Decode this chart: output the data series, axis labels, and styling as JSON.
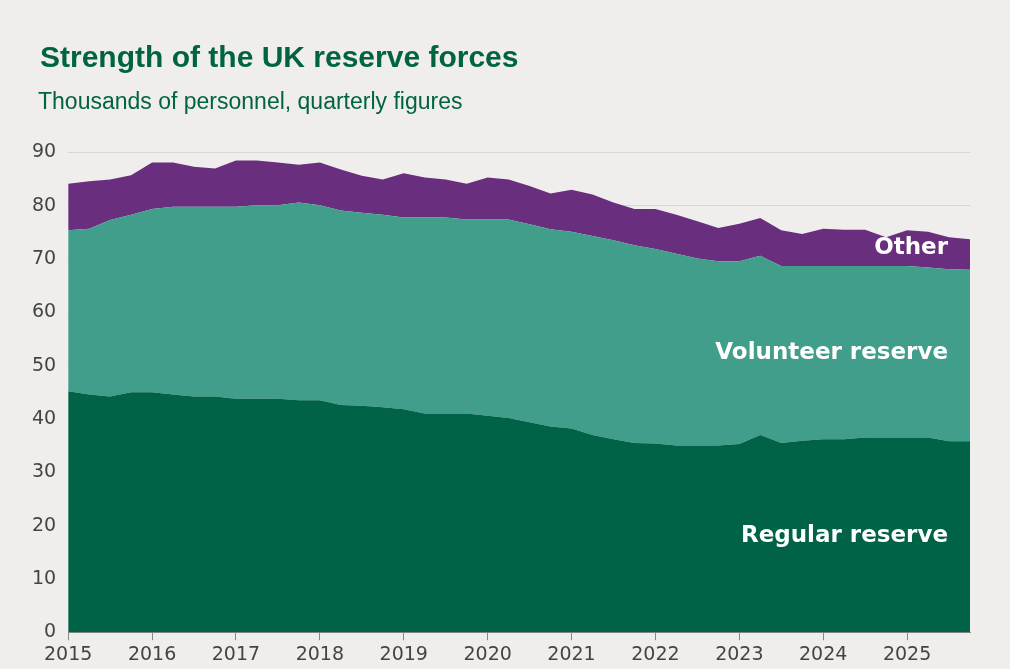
{
  "chart_data": {
    "type": "area",
    "title": "Strength of the UK reserve forces",
    "subtitle": "Thousands of personnel, quarterly figures",
    "x": [
      2015,
      2015.25,
      2015.5,
      2015.75,
      2016,
      2016.25,
      2016.5,
      2016.75,
      2017,
      2017.25,
      2017.5,
      2017.75,
      2018,
      2018.25,
      2018.5,
      2018.75,
      2019,
      2019.25,
      2019.5,
      2019.75,
      2020,
      2020.25,
      2020.5,
      2020.75,
      2021,
      2021.25,
      2021.5,
      2021.75,
      2022,
      2022.25,
      2022.5,
      2022.75,
      2023,
      2023.25,
      2023.5,
      2023.75,
      2024,
      2024.25,
      2024.5,
      2024.75,
      2025,
      2025.25,
      2025.5,
      2025.75
    ],
    "series": [
      {
        "name": "Regular reserve",
        "color": "#006246",
        "values": [
          45.2,
          44.6,
          44.2,
          45.0,
          45.0,
          44.6,
          44.2,
          44.2,
          43.8,
          43.8,
          43.8,
          43.5,
          43.5,
          42.6,
          42.5,
          42.2,
          41.8,
          41.0,
          41.0,
          41.0,
          40.6,
          40.2,
          39.4,
          38.6,
          38.2,
          37.0,
          36.2,
          35.5,
          35.4,
          35.0,
          35.0,
          35.0,
          35.3,
          37.0,
          35.5,
          35.9,
          36.2,
          36.2,
          36.5,
          36.5,
          36.5,
          36.5,
          35.8,
          35.8
        ]
      },
      {
        "name": "Volunteer reserve",
        "color": "#409e8a",
        "values": [
          30.2,
          31.1,
          33.1,
          33.3,
          34.4,
          35.2,
          35.6,
          35.6,
          36.0,
          36.3,
          36.3,
          37.1,
          36.6,
          36.5,
          36.2,
          36.1,
          36.0,
          36.8,
          36.8,
          36.4,
          36.8,
          37.2,
          37.1,
          37.0,
          36.9,
          37.3,
          37.3,
          37.1,
          36.5,
          36.0,
          35.1,
          34.6,
          34.3,
          33.6,
          33.2,
          32.8,
          32.5,
          32.5,
          32.2,
          32.2,
          32.2,
          31.9,
          32.3,
          32.2
        ]
      },
      {
        "name": "Other",
        "color": "#6a2e7e",
        "values": [
          8.7,
          8.9,
          7.6,
          7.4,
          8.7,
          8.3,
          7.5,
          7.2,
          8.7,
          8.4,
          8.0,
          7.1,
          8.0,
          7.7,
          6.9,
          6.6,
          8.3,
          7.5,
          7.1,
          6.7,
          7.9,
          7.5,
          7.2,
          6.7,
          7.9,
          7.8,
          7.1,
          6.8,
          7.5,
          7.3,
          7.0,
          6.2,
          7.0,
          7.1,
          6.7,
          6.0,
          7.0,
          6.8,
          6.8,
          5.4,
          6.7,
          6.7,
          6.0,
          5.7
        ]
      }
    ],
    "stacked": true,
    "xlim": [
      2015,
      2025.75
    ],
    "xticks": [
      2015,
      2016,
      2017,
      2018,
      2019,
      2020,
      2021,
      2022,
      2023,
      2024,
      2025
    ],
    "ylim": [
      0,
      90
    ],
    "yticks": [
      0,
      10,
      20,
      30,
      40,
      50,
      60,
      70,
      80,
      90
    ],
    "grid": "y",
    "legend": false
  }
}
